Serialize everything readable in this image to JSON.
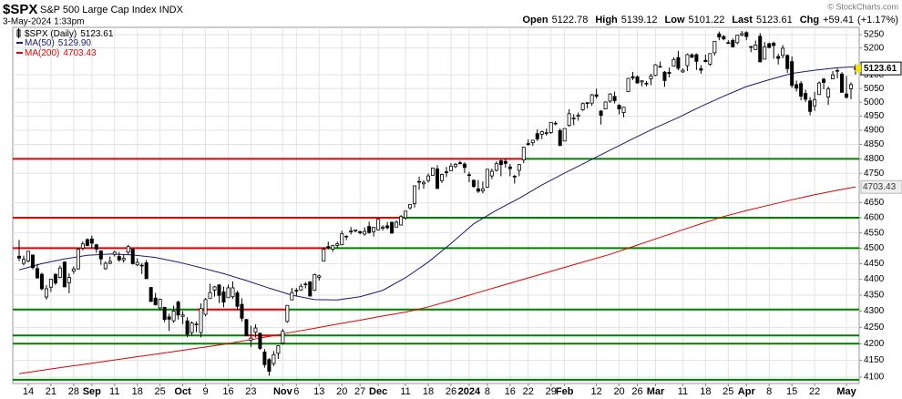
{
  "chart_data": {
    "type": "candlestick",
    "title": "$SPX",
    "subtitle": "S&P 500 Large Cap Index INDX",
    "date": "3-May-2024 1:33pm",
    "source": "© StockCharts.com",
    "quote": {
      "labels": [
        "Open",
        "High",
        "Low",
        "Last",
        "Chg"
      ],
      "change": "+59.41",
      "change_pct": "(+1.17%)"
    },
    "name": "$SPX (Daily)",
    "candle_color": "#000000",
    "log_scale": true,
    "grid": true,
    "xlim": [
      -1.4,
      184.8
    ],
    "xticks": [
      {
        "value": 2,
        "label": "14"
      },
      {
        "value": 7,
        "label": "21"
      },
      {
        "value": 12,
        "label": "28"
      },
      {
        "value": 16,
        "label": "Sep",
        "bold": true
      },
      {
        "value": 21,
        "label": "11"
      },
      {
        "value": 26,
        "label": "18"
      },
      {
        "value": 31,
        "label": "25"
      },
      {
        "value": 36,
        "label": "Oct",
        "bold": true
      },
      {
        "value": 41,
        "label": "9"
      },
      {
        "value": 46,
        "label": "16"
      },
      {
        "value": 51,
        "label": "23"
      },
      {
        "value": 58,
        "label": "Nov",
        "bold": true
      },
      {
        "value": 61,
        "label": "6"
      },
      {
        "value": 66,
        "label": "13"
      },
      {
        "value": 71,
        "label": "20"
      },
      {
        "value": 75,
        "label": "27"
      },
      {
        "value": 79,
        "label": "Dec",
        "bold": true
      },
      {
        "value": 85,
        "label": "11"
      },
      {
        "value": 90,
        "label": "18"
      },
      {
        "value": 95,
        "label": "26"
      },
      {
        "value": 99,
        "label": "2024",
        "bold": true
      },
      {
        "value": 103,
        "label": "8"
      },
      {
        "value": 108,
        "label": "16"
      },
      {
        "value": 112,
        "label": "22"
      },
      {
        "value": 117,
        "label": "29"
      },
      {
        "value": 120,
        "label": "Feb",
        "bold": true
      },
      {
        "value": 127,
        "label": "12"
      },
      {
        "value": 132,
        "label": "20"
      },
      {
        "value": 136,
        "label": "26"
      },
      {
        "value": 140,
        "label": "Mar",
        "bold": true
      },
      {
        "value": 146,
        "label": "11"
      },
      {
        "value": 151,
        "label": "18"
      },
      {
        "value": 156,
        "label": "25"
      },
      {
        "value": 160,
        "label": "Apr",
        "bold": true
      },
      {
        "value": 165,
        "label": "8"
      },
      {
        "value": 170,
        "label": "15"
      },
      {
        "value": 175,
        "label": "22"
      },
      {
        "value": 182,
        "label": "May",
        "bold": true
      }
    ],
    "ylim": [
      4081,
      5278
    ],
    "yticks": [
      4100,
      4150,
      4200,
      4250,
      4300,
      4350,
      4400,
      4450,
      4500,
      4550,
      4600,
      4650,
      4750,
      4800,
      4850,
      4900,
      4950,
      5000,
      5050,
      5100,
      5200,
      5250
    ],
    "open": [
      4474,
      4451,
      4458,
      4478,
      4434,
      4416,
      4344,
      4375,
      4416,
      4406,
      4455,
      4389,
      4426,
      4433,
      4500,
      4528,
      4530,
      4511,
      4491,
      4434,
      4451,
      4480,
      4473,
      4462,
      4487,
      4497,
      4446,
      4445,
      4453,
      4374,
      4341,
      4310,
      4312,
      4282,
      4270,
      4328,
      4284,
      4270,
      4234,
      4260,
      4234,
      4290,
      4339,
      4366,
      4382,
      4360,
      4342,
      4345,
      4357,
      4321,
      4274,
      4210,
      4235,
      4232,
      4175,
      4152,
      4140,
      4171,
      4202,
      4268,
      4335,
      4365,
      4366,
      4385,
      4392,
      4365,
      4406,
      4458,
      4505,
      4497,
      4509,
      4511,
      4539,
      4553,
      4556,
      4554,
      4546,
      4571,
      4554,
      4560,
      4565,
      4573,
      4585,
      4569,
      4576,
      4600,
      4633,
      4647,
      4722,
      4714,
      4725,
      4743,
      4765,
      4725,
      4753,
      4759,
      4773,
      4786,
      4782,
      4745,
      4726,
      4697,
      4690,
      4703,
      4741,
      4760,
      4793,
      4791,
      4772,
      4740,
      4760,
      4796,
      4853,
      4856,
      4888,
      4886,
      4888,
      4892,
      4925,
      4899,
      4862,
      4917,
      4943,
      4950,
      4973,
      4996,
      4997,
      5027,
      4968,
      4976,
      5004,
      5021,
      4989,
      4963,
      5039,
      5093,
      5093,
      5074,
      5067,
      5085,
      5098,
      5131,
      5110,
      5109,
      5132,
      5164,
      5111,
      5134,
      5174,
      5175,
      5123,
      5154,
      5139,
      5182,
      5253,
      5243,
      5220,
      5228,
      5220,
      5249,
      5258,
      5204,
      5194,
      5244,
      5158,
      5216,
      5218,
      5168,
      5172,
      5172,
      5149,
      5064,
      5068,
      5032,
      5005,
      4987,
      5028,
      5084,
      5019,
      5085,
      5114,
      5103,
      5030,
      5049,
      5122.78
    ],
    "high": [
      4527,
      4476,
      4490,
      4479,
      4449,
      4421,
      4382,
      4401,
      4418,
      4444,
      4458,
      4419,
      4441,
      4501,
      4522,
      4532,
      4541,
      4514,
      4491,
      4457,
      4473,
      4491,
      4488,
      4479,
      4511,
      4497,
      4467,
      4452,
      4462,
      4376,
      4357,
      4339,
      4313,
      4292,
      4317,
      4333,
      4300,
      4281,
      4268,
      4268,
      4324,
      4341,
      4386,
      4379,
      4385,
      4377,
      4383,
      4393,
      4364,
      4340,
      4276,
      4255,
      4259,
      4232,
      4184,
      4157,
      4178,
      4195,
      4245,
      4318,
      4373,
      4372,
      4386,
      4391,
      4394,
      4418,
      4415,
      4503,
      4521,
      4511,
      4521,
      4557,
      4542,
      4569,
      4560,
      4557,
      4568,
      4587,
      4569,
      4599,
      4575,
      4586,
      4587,
      4591,
      4609,
      4623,
      4643,
      4709,
      4739,
      4726,
      4749,
      4769,
      4778,
      4748,
      4772,
      4785,
      4785,
      4793,
      4788,
      4755,
      4729,
      4727,
      4722,
      4765,
      4766,
      4791,
      4799,
      4802,
      4782,
      4745,
      4782,
      4842,
      4868,
      4866,
      4903,
      4898,
      4906,
      4929,
      4932,
      4906,
      4907,
      4975,
      4957,
      4963,
      4999,
      5001,
      5030,
      5049,
      4972,
      5003,
      5033,
      5039,
      4993,
      4983,
      5088,
      5111,
      5098,
      5080,
      5077,
      5104,
      5140,
      5149,
      5114,
      5127,
      5165,
      5189,
      5124,
      5179,
      5180,
      5179,
      5136,
      5175,
      5180,
      5226,
      5262,
      5248,
      5229,
      5236,
      5249,
      5264,
      5263,
      5208,
      5228,
      5256,
      5222,
      5220,
      5224,
      5178,
      5211,
      5176,
      5168,
      5079,
      5077,
      5046,
      5019,
      5038,
      5076,
      5089,
      5057,
      5114,
      5124,
      5110,
      5096,
      5073,
      5139.12
    ],
    "low": [
      4458,
      4444,
      4454,
      4432,
      4403,
      4365,
      4336,
      4360,
      4382,
      4403,
      4375,
      4356,
      4417,
      4431,
      4493,
      4507,
      4501,
      4485,
      4446,
      4430,
      4448,
      4473,
      4456,
      4453,
      4479,
      4447,
      4442,
      4417,
      4402,
      4329,
      4317,
      4302,
      4266,
      4239,
      4264,
      4274,
      4260,
      4220,
      4225,
      4235,
      4219,
      4284,
      4339,
      4345,
      4325,
      4312,
      4342,
      4338,
      4303,
      4268,
      4224,
      4190,
      4219,
      4181,
      4128,
      4104,
      4133,
      4154,
      4197,
      4264,
      4335,
      4348,
      4365,
      4371,
      4346,
      4363,
      4396,
      4458,
      4496,
      4488,
      4500,
      4510,
      4526,
      4545,
      4552,
      4545,
      4541,
      4547,
      4538,
      4558,
      4558,
      4561,
      4548,
      4569,
      4574,
      4593,
      4627,
      4634,
      4694,
      4697,
      4718,
      4743,
      4697,
      4717,
      4737,
      4758,
      4768,
      4781,
      4751,
      4719,
      4700,
      4683,
      4682,
      4700,
      4730,
      4756,
      4740,
      4769,
      4740,
      4715,
      4740,
      4785,
      4845,
      4845,
      4862,
      4869,
      4881,
      4887,
      4917,
      4845,
      4862,
      4912,
      4918,
      4934,
      4969,
      4978,
      4987,
      5013,
      4920,
      4976,
      4998,
      4996,
      4956,
      4946,
      5038,
      5081,
      5068,
      5058,
      5058,
      5062,
      5095,
      5127,
      5056,
      5091,
      5131,
      5117,
      5107,
      5114,
      5163,
      5118,
      5104,
      5146,
      5133,
      5172,
      5229,
      5229,
      5215,
      5203,
      5214,
      5244,
      5229,
      5184,
      5194,
      5147,
      5158,
      5198,
      5160,
      5138,
      5161,
      5107,
      5052,
      5039,
      5007,
      5001,
      4953,
      4969,
      5027,
      5047,
      4990,
      5084,
      5087,
      5035,
      5013,
      5011,
      5101.22
    ],
    "close": [
      4468,
      4464,
      4490,
      4437,
      4404,
      4370,
      4370,
      4400,
      4388,
      4436,
      4376,
      4406,
      4433,
      4497,
      4514,
      4508,
      4516,
      4497,
      4465,
      4451,
      4457,
      4487,
      4462,
      4467,
      4505,
      4450,
      4454,
      4444,
      4402,
      4330,
      4320,
      4337,
      4274,
      4275,
      4300,
      4288,
      4288,
      4229,
      4263,
      4258,
      4308,
      4336,
      4358,
      4376,
      4349,
      4328,
      4373,
      4373,
      4315,
      4278,
      4224,
      4217,
      4248,
      4186,
      4137,
      4117,
      4167,
      4194,
      4238,
      4318,
      4358,
      4365,
      4378,
      4383,
      4347,
      4415,
      4411,
      4496,
      4502,
      4508,
      4514,
      4547,
      4538,
      4556,
      4559,
      4550,
      4555,
      4551,
      4568,
      4595,
      4569,
      4567,
      4549,
      4585,
      4604,
      4622,
      4644,
      4707,
      4720,
      4719,
      4741,
      4768,
      4698,
      4746,
      4755,
      4775,
      4781,
      4783,
      4770,
      4743,
      4705,
      4689,
      4697,
      4764,
      4757,
      4783,
      4780,
      4784,
      4766,
      4739,
      4780,
      4840,
      4850,
      4865,
      4869,
      4895,
      4891,
      4928,
      4925,
      4846,
      4906,
      4959,
      4943,
      4954,
      4995,
      4998,
      5027,
      5022,
      4953,
      5001,
      5030,
      5006,
      4976,
      4982,
      5087,
      5089,
      5070,
      5078,
      5069,
      5096,
      5137,
      5131,
      5079,
      5105,
      5157,
      5124,
      5117,
      5175,
      5165,
      5150,
      5117,
      5149,
      5179,
      5225,
      5241,
      5234,
      5218,
      5204,
      5248,
      5254,
      5243,
      5205,
      5211,
      5148,
      5204,
      5202,
      5209,
      5161,
      5199,
      5123,
      5061,
      5051,
      5022,
      5011,
      4967,
      5010,
      5070,
      5072,
      5048,
      5100,
      5116,
      5036,
      5018,
      5064,
      5123.61
    ],
    "series": [
      {
        "name": "MA(50)",
        "color": "#1a1a6e",
        "last_label": "5129.90",
        "x": [
          0,
          5,
          10,
          15,
          20,
          25,
          30,
          35,
          40,
          45,
          50,
          55,
          60,
          65,
          70,
          75,
          80,
          85,
          90,
          95,
          100,
          105,
          110,
          115,
          120,
          125,
          130,
          135,
          140,
          145,
          150,
          155,
          160,
          165,
          170,
          175,
          180,
          184
        ],
        "values": [
          4430,
          4450,
          4465,
          4477,
          4481,
          4478,
          4470,
          4455,
          4437,
          4418,
          4396,
          4372,
          4350,
          4336,
          4335,
          4345,
          4365,
          4405,
          4455,
          4515,
          4580,
          4625,
          4665,
          4710,
          4751,
          4790,
          4830,
          4870,
          4909,
          4945,
          4985,
          5022,
          5057,
          5082,
          5105,
          5117,
          5126,
          5129.9
        ]
      },
      {
        "name": "MA(200)",
        "color": "#e00000",
        "x": [
          0,
          5,
          10,
          15,
          20,
          25,
          30,
          35,
          40,
          45,
          50,
          55,
          60,
          65,
          70,
          75,
          80,
          85,
          90,
          95,
          100,
          105,
          110,
          115,
          120,
          125,
          130,
          135,
          140,
          145,
          150,
          155,
          160,
          165,
          170,
          175,
          180,
          184
        ],
        "values": [
          4110,
          4120,
          4130,
          4139,
          4149,
          4159,
          4168,
          4178,
          4188,
          4198,
          4210,
          4222,
          4235,
          4247,
          4260,
          4272,
          4285,
          4297,
          4313,
          4333,
          4354,
          4375,
          4396,
          4417,
          4438,
          4459,
          4480,
          4505,
          4530,
          4555,
          4580,
          4604,
          4624,
          4642,
          4660,
          4677,
          4692,
          4703.43
        ]
      }
    ],
    "levels": [
      {
        "value": 4800,
        "segments": [
          {
            "from": -1.4,
            "to": 111,
            "color": "#e00000"
          },
          {
            "from": 111,
            "to": 184.8,
            "color": "#008000"
          }
        ]
      },
      {
        "value": 4600,
        "segments": [
          {
            "from": -1.4,
            "to": 84,
            "color": "#e00000"
          },
          {
            "from": 84,
            "to": 184.8,
            "color": "#008000"
          }
        ]
      },
      {
        "value": 4500,
        "segments": [
          {
            "from": -1.4,
            "to": 68,
            "color": "#e00000"
          },
          {
            "from": 68,
            "to": 184.8,
            "color": "#008000"
          }
        ]
      },
      {
        "value": 4305,
        "segments": [
          {
            "from": -1.4,
            "to": 39,
            "color": "#008000"
          },
          {
            "from": 39,
            "to": 59,
            "color": "#e00000"
          },
          {
            "from": 59,
            "to": 184.8,
            "color": "#008000"
          }
        ]
      },
      {
        "value": 4225,
        "segments": [
          {
            "from": -1.4,
            "to": 50,
            "color": "#008000"
          },
          {
            "from": 50,
            "to": 57,
            "color": "#e00000"
          },
          {
            "from": 57,
            "to": 184.8,
            "color": "#008000"
          }
        ]
      },
      {
        "value": 4200,
        "segments": [
          {
            "from": -1.4,
            "to": 184.8,
            "color": "#008000"
          }
        ]
      },
      {
        "value": 4092,
        "segments": [
          {
            "from": -1.4,
            "to": 184.8,
            "color": "#008000"
          }
        ]
      }
    ]
  }
}
